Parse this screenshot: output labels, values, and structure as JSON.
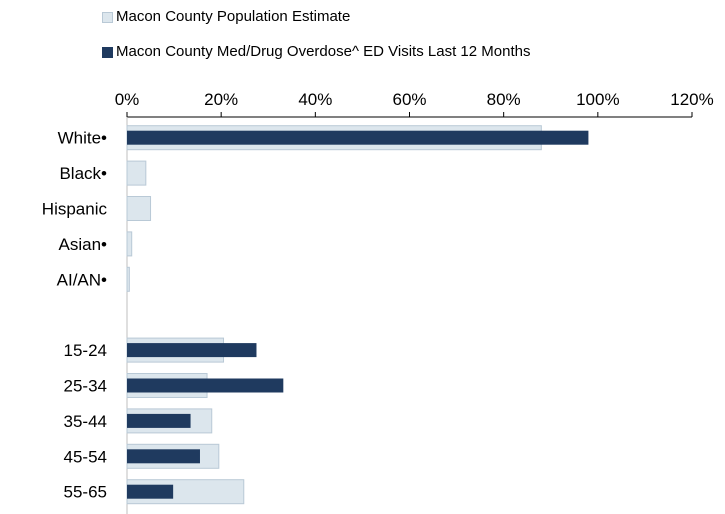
{
  "chart_data": {
    "type": "bar",
    "orientation": "horizontal",
    "categories": [
      "White•",
      "Black•",
      "Hispanic",
      "Asian•",
      "AI/AN•",
      "",
      "15-24",
      "25-34",
      "35-44",
      "45-54",
      "55-65"
    ],
    "series": [
      {
        "name": "Macon County Population Estimate",
        "color": "#dce6ed",
        "values": [
          88,
          4,
          5,
          1,
          0.5,
          null,
          20.5,
          17,
          18,
          19.5,
          24.8
        ]
      },
      {
        "name": "Macon County Med/Drug Overdose^ ED Visits Last 12 Months",
        "color": "#1f3a5f",
        "values": [
          98,
          null,
          null,
          null,
          null,
          null,
          27.5,
          33.2,
          13.5,
          15.5,
          9.8
        ]
      }
    ],
    "xlim": [
      0,
      120
    ],
    "xticks": [
      "0%",
      "20%",
      "40%",
      "60%",
      "80%",
      "100%",
      "120%"
    ],
    "title": "",
    "xlabel": "",
    "ylabel": "",
    "grid": false,
    "legend_position": "top-left",
    "axis_position": "top"
  }
}
